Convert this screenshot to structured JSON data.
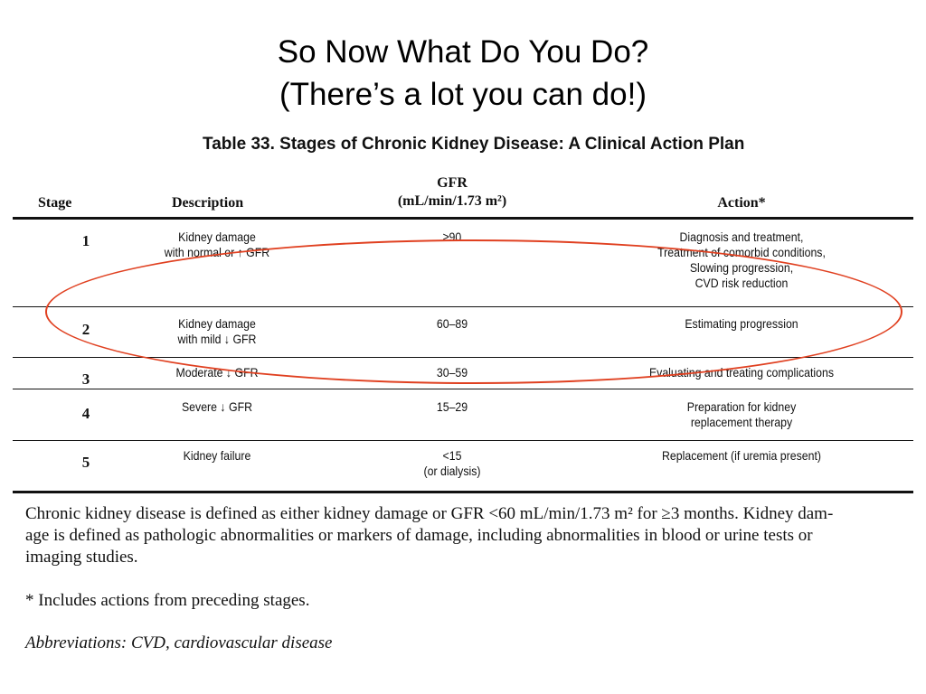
{
  "slide": {
    "title_line1": "So Now What Do You Do?",
    "title_line2": "(There’s a lot you can do!)"
  },
  "table": {
    "caption": "Table 33. Stages of Chronic Kidney Disease: A Clinical Action Plan",
    "headers": {
      "stage": "Stage",
      "description": "Description",
      "gfr_line1": "GFR",
      "gfr_line2": "(mL/min/1.73 m²)",
      "action": "Action*"
    },
    "rows": [
      {
        "stage": "1",
        "description": [
          "Kidney damage",
          "with normal or ↑ GFR"
        ],
        "gfr": [
          "≥90"
        ],
        "action": [
          "Diagnosis and treatment,",
          "Treatment of comorbid conditions,",
          "Slowing progression,",
          "CVD risk reduction"
        ]
      },
      {
        "stage": "2",
        "description": [
          "Kidney damage",
          "with mild ↓ GFR"
        ],
        "gfr": [
          "60–89"
        ],
        "action": [
          "Estimating progression"
        ]
      },
      {
        "stage": "3",
        "description": [
          "Moderate ↓ GFR"
        ],
        "gfr": [
          "30–59"
        ],
        "action": [
          "Evaluating and treating complications"
        ]
      },
      {
        "stage": "4",
        "description": [
          "Severe ↓ GFR"
        ],
        "gfr": [
          "15–29"
        ],
        "action": [
          "Preparation for kidney",
          "replacement therapy"
        ]
      },
      {
        "stage": "5",
        "description": [
          "Kidney failure"
        ],
        "gfr": [
          "<15",
          "(or dialysis)"
        ],
        "action": [
          "Replacement (if uremia present)"
        ]
      }
    ]
  },
  "notes": {
    "definition_line1": "Chronic kidney disease is defined as either kidney damage or GFR <60 mL/min/1.73 m² for ≥3 months. Kidney dam-",
    "definition_line2": "age is defined as pathologic abnormalities or markers of damage, including abnormalities in blood or urine tests or",
    "definition_line3": "imaging studies.",
    "footnote": "* Includes actions from preceding stages.",
    "abbreviations": "Abbreviations: CVD, cardiovascular disease"
  },
  "colors": {
    "highlight_ellipse": "#e04020",
    "rules": "#111111"
  }
}
